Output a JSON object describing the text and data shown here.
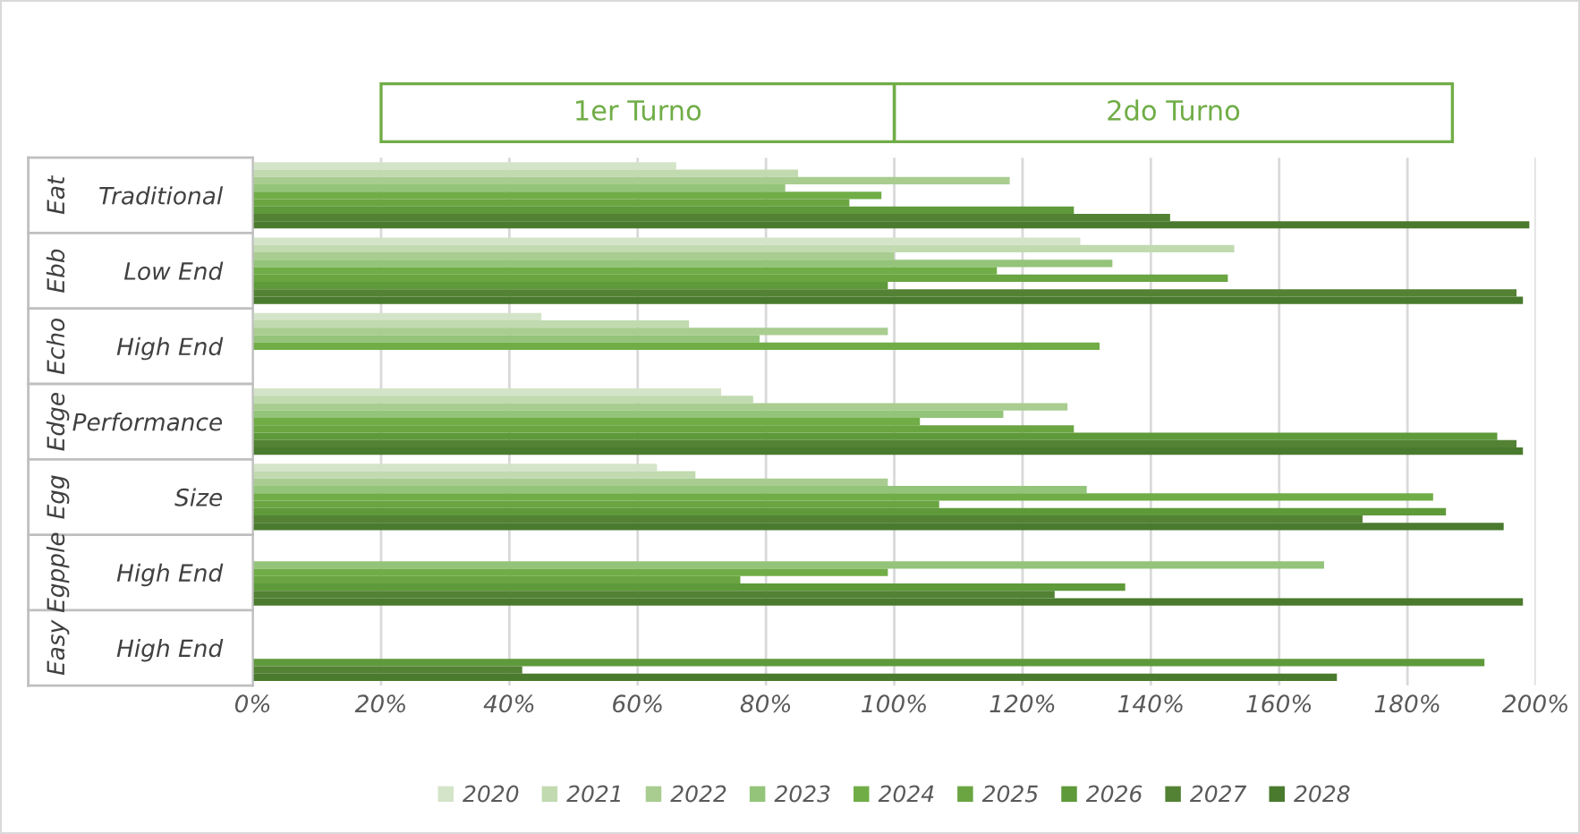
{
  "chart_data": {
    "type": "bar",
    "orientation": "horizontal",
    "categories": [
      "Traditional",
      "Low End",
      "High End",
      "Performance",
      "Size",
      "High End",
      "High End"
    ],
    "annotations": [
      "1er Turno",
      "2do Turno",
      "Eat",
      "Ebb",
      "Echo",
      "Edge",
      "Egg",
      "Egpple",
      "Easy"
    ],
    "series": [
      {
        "name": "2020",
        "color": "#d4e4c8",
        "values": [
          66,
          129,
          45,
          73,
          63,
          null,
          null
        ]
      },
      {
        "name": "2021",
        "color": "#c1dab0",
        "values": [
          85,
          153,
          68,
          78,
          69,
          null,
          null
        ]
      },
      {
        "name": "2022",
        "color": "#a9cd90",
        "values": [
          118,
          100,
          99,
          127,
          99,
          null,
          null
        ]
      },
      {
        "name": "2023",
        "color": "#93c47a",
        "values": [
          83,
          134,
          79,
          117,
          130,
          167,
          null
        ]
      },
      {
        "name": "2024",
        "color": "#70ad47",
        "values": [
          98,
          116,
          132,
          104,
          184,
          99,
          null
        ]
      },
      {
        "name": "2025",
        "color": "#6aa542",
        "values": [
          93,
          152,
          null,
          128,
          107,
          76,
          null
        ]
      },
      {
        "name": "2026",
        "color": "#5e9a3a",
        "values": [
          128,
          99,
          null,
          194,
          186,
          136,
          192
        ]
      },
      {
        "name": "2027",
        "color": "#548235",
        "values": [
          143,
          197,
          null,
          197,
          173,
          125,
          42
        ]
      },
      {
        "name": "2028",
        "color": "#4a7a2e",
        "values": [
          199,
          198,
          null,
          198,
          195,
          198,
          169
        ]
      }
    ],
    "xlim": [
      0,
      200
    ],
    "xticks": [
      {
        "value": 0,
        "label": "0%"
      },
      {
        "value": 20,
        "label": "20%"
      },
      {
        "value": 40,
        "label": "40%"
      },
      {
        "value": 60,
        "label": "60%"
      },
      {
        "value": 80,
        "label": "80%"
      },
      {
        "value": 100,
        "label": "100%"
      },
      {
        "value": 120,
        "label": "120%"
      },
      {
        "value": 140,
        "label": "140%"
      },
      {
        "value": 160,
        "label": "160%"
      },
      {
        "value": 180,
        "label": "180%"
      },
      {
        "value": 200,
        "label": "200%"
      }
    ],
    "grid": "x",
    "legend": "bottom"
  }
}
